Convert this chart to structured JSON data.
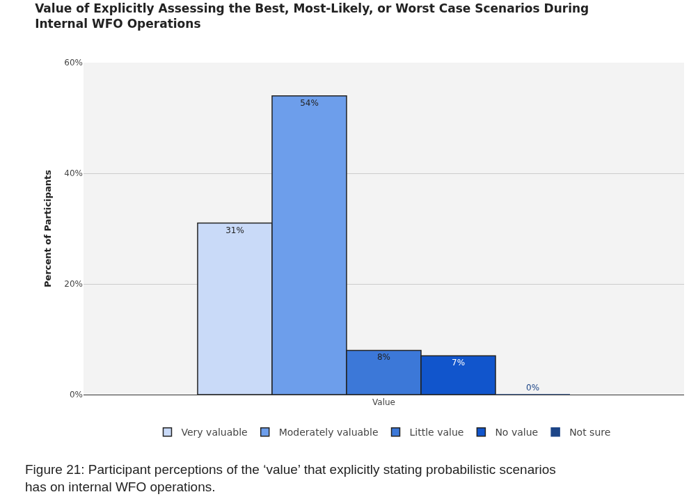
{
  "chart_data": {
    "type": "bar",
    "title": "Value of Explicitly Assessing the Best, Most-Likely, or Worst Case Scenarios During\nInternal WFO Operations",
    "ylabel": "Percent of Participants",
    "categories": [
      "Value"
    ],
    "series": [
      {
        "name": "Very valuable",
        "color": "#c9daf8",
        "values": [
          31
        ],
        "value_labels": [
          "31%"
        ]
      },
      {
        "name": "Moderately valuable",
        "color": "#6d9eeb",
        "values": [
          54
        ],
        "value_labels": [
          "54%"
        ]
      },
      {
        "name": "Little value",
        "color": "#3c78d8",
        "values": [
          8
        ],
        "value_labels": [
          "8%"
        ]
      },
      {
        "name": "No value",
        "color": "#1155cc",
        "values": [
          7
        ],
        "value_labels": [
          "7%"
        ]
      },
      {
        "name": "Not sure",
        "color": "#1c4587",
        "values": [
          0
        ],
        "value_labels": [
          "0%"
        ]
      }
    ],
    "ylim": [
      0,
      60
    ],
    "yticks": [
      {
        "value": 0,
        "label": "0%"
      },
      {
        "value": 20,
        "label": "20%"
      },
      {
        "value": 40,
        "label": "40%"
      },
      {
        "value": 60,
        "label": "60%"
      }
    ],
    "grid": "y",
    "legend": "bottom",
    "annotations": [
      "Figure 21: Participant perceptions of the ‘value’ that explicitly stating probabilistic scenarios\nhas on internal WFO operations."
    ]
  }
}
